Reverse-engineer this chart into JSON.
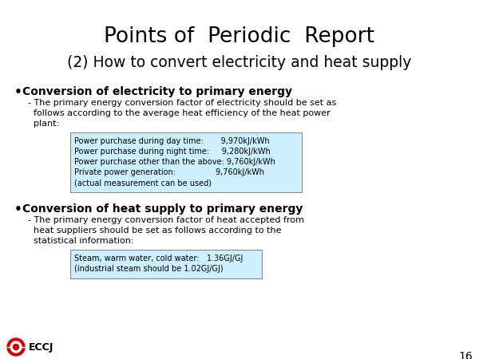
{
  "title_line1": "Points of  Periodic  Report",
  "title_line2": "(2) How to convert electricity and heat supply",
  "title_bg_color": "#F2C9A0",
  "title_border_color": "#000000",
  "bg_color": "#FFFFFF",
  "bullet1_header": "Conversion of electricity to primary energy",
  "bullet1_body_line1": "- The primary energy conversion factor of electricity should be set as",
  "bullet1_body_line2": "  follows according to the average heat efficiency of the heat power",
  "bullet1_body_line3": "  plant:",
  "box1_line1": "Power purchase during day time:       9,970kJ/kWh",
  "box1_line2": "Power purchase during night time:     9,280kJ/kWh",
  "box1_line3": "Power purchase other than the above: 9,760kJ/kWh",
  "box1_line4": "Private power generation:                9,760kJ/kWh",
  "box1_line5": "(actual measurement can be used)",
  "box1_bg": "#CCF0FF",
  "box1_border": "#888888",
  "bullet2_header": "Conversion of heat supply to primary energy",
  "bullet2_body_line1": "- The primary energy conversion factor of heat accepted from",
  "bullet2_body_line2": "  heat suppliers should be set as follows according to the",
  "bullet2_body_line3": "  statistical information:",
  "box2_line1": "Steam, warm water, cold water:   1.36GJ/GJ",
  "box2_line2": "(industrial steam should be 1.02GJ/GJ)",
  "box2_bg": "#CCF0FF",
  "box2_border": "#888888",
  "page_number": "16",
  "eccj_text": "ECCJ",
  "eccj_logo_color": "#CC0000",
  "text_color": "#000000",
  "font_family": "Arial Narrow"
}
